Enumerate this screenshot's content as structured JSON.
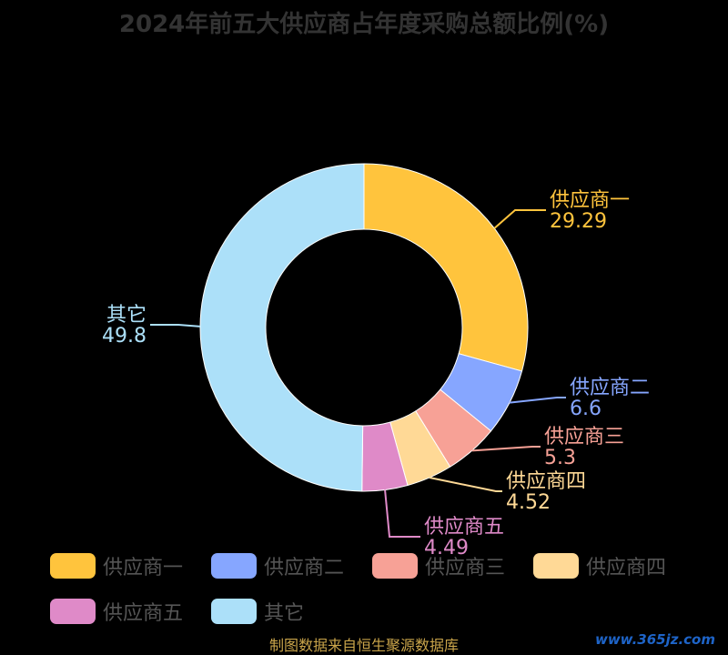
{
  "chart_data": {
    "type": "pie",
    "title": "2024年前五大供应商占年度采购总额比例(%)",
    "categories": [
      "供应商一",
      "供应商二",
      "供应商三",
      "供应商四",
      "供应商五",
      "其它"
    ],
    "values": [
      29.29,
      6.6,
      5.3,
      4.52,
      4.49,
      49.8
    ],
    "value_labels": [
      "29.29",
      "6.6",
      "5.3",
      "4.52",
      "4.49",
      "49.8"
    ],
    "colors": [
      "#FFC43D",
      "#86A6FF",
      "#F7A196",
      "#FFD996",
      "#DF8AC8",
      "#ACE0F9"
    ],
    "donut": true,
    "legend_position": "bottom"
  },
  "source": "制图数据来自恒生聚源数据库",
  "watermark": "www.365jz.com"
}
